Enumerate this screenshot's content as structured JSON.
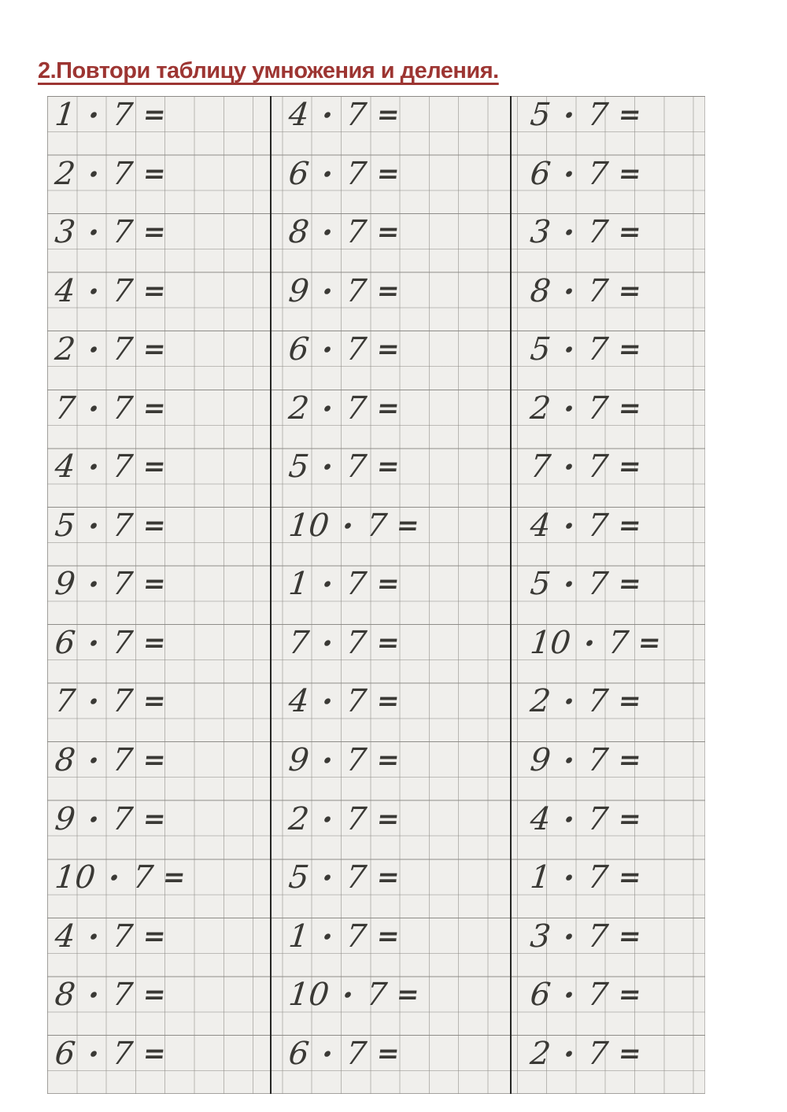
{
  "title": "2.Повтори таблицу умножения и деления.",
  "colors": {
    "title_accent": "#9d3532",
    "paper": "#f0efec",
    "grid_line": "#8c8a85",
    "separator": "#262624",
    "ink": "#3a3935"
  },
  "worksheet": {
    "operator": "·",
    "multiplier": "7",
    "equals": "=",
    "columns": [
      {
        "factors": [
          "1",
          "2",
          "3",
          "4",
          "2",
          "7",
          "4",
          "5",
          "9",
          "6",
          "7",
          "8",
          "9",
          "10",
          "4",
          "8",
          "6"
        ]
      },
      {
        "factors": [
          "4",
          "6",
          "8",
          "9",
          "6",
          "2",
          "5",
          "10",
          "1",
          "7",
          "4",
          "9",
          "2",
          "5",
          "1",
          "10",
          "6"
        ]
      },
      {
        "factors": [
          "5",
          "6",
          "3",
          "8",
          "5",
          "2",
          "7",
          "4",
          "5",
          "10",
          "2",
          "9",
          "4",
          "1",
          "3",
          "6",
          "2"
        ]
      }
    ]
  }
}
